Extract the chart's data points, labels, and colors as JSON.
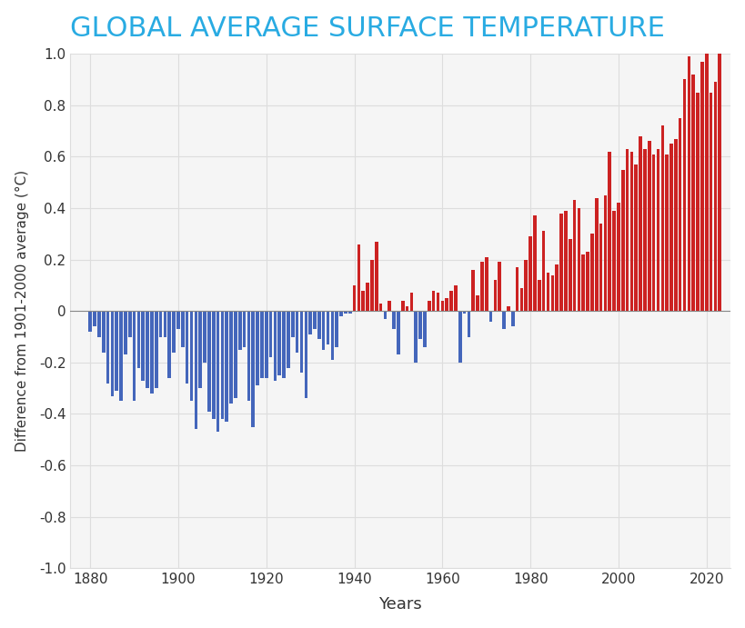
{
  "title": "GLOBAL AVERAGE SURFACE TEMPERATURE",
  "title_color": "#29ABE2",
  "xlabel": "Years",
  "ylabel": "Difference from 1901-2000 average (°C)",
  "background_color": "#ffffff",
  "plot_bg_color": "#f5f5f5",
  "grid_color": "#dddddd",
  "ylim": [
    -1.0,
    1.0
  ],
  "years": [
    1880,
    1881,
    1882,
    1883,
    1884,
    1885,
    1886,
    1887,
    1888,
    1889,
    1890,
    1891,
    1892,
    1893,
    1894,
    1895,
    1896,
    1897,
    1898,
    1899,
    1900,
    1901,
    1902,
    1903,
    1904,
    1905,
    1906,
    1907,
    1908,
    1909,
    1910,
    1911,
    1912,
    1913,
    1914,
    1915,
    1916,
    1917,
    1918,
    1919,
    1920,
    1921,
    1922,
    1923,
    1924,
    1925,
    1926,
    1927,
    1928,
    1929,
    1930,
    1931,
    1932,
    1933,
    1934,
    1935,
    1936,
    1937,
    1938,
    1939,
    1940,
    1941,
    1942,
    1943,
    1944,
    1945,
    1946,
    1947,
    1948,
    1949,
    1950,
    1951,
    1952,
    1953,
    1954,
    1955,
    1956,
    1957,
    1958,
    1959,
    1960,
    1961,
    1962,
    1963,
    1964,
    1965,
    1966,
    1967,
    1968,
    1969,
    1970,
    1971,
    1972,
    1973,
    1974,
    1975,
    1976,
    1977,
    1978,
    1979,
    1980,
    1981,
    1982,
    1983,
    1984,
    1985,
    1986,
    1987,
    1988,
    1989,
    1990,
    1991,
    1992,
    1993,
    1994,
    1995,
    1996,
    1997,
    1998,
    1999,
    2000,
    2001,
    2002,
    2003,
    2004,
    2005,
    2006,
    2007,
    2008,
    2009,
    2010,
    2011,
    2012,
    2013,
    2014,
    2015,
    2016,
    2017,
    2018,
    2019,
    2020,
    2021,
    2022,
    2023
  ],
  "anomalies": [
    -0.08,
    -0.06,
    -0.1,
    -0.16,
    -0.28,
    -0.33,
    -0.31,
    -0.35,
    -0.17,
    -0.1,
    -0.35,
    -0.22,
    -0.27,
    -0.3,
    -0.32,
    -0.3,
    -0.1,
    -0.1,
    -0.26,
    -0.16,
    -0.07,
    -0.14,
    -0.28,
    -0.35,
    -0.46,
    -0.3,
    -0.2,
    -0.39,
    -0.42,
    -0.47,
    -0.42,
    -0.43,
    -0.36,
    -0.34,
    -0.15,
    -0.14,
    -0.35,
    -0.45,
    -0.29,
    -0.26,
    -0.26,
    -0.18,
    -0.27,
    -0.25,
    -0.26,
    -0.22,
    -0.1,
    -0.16,
    -0.24,
    -0.34,
    -0.09,
    -0.07,
    -0.11,
    -0.15,
    -0.13,
    -0.19,
    -0.14,
    -0.02,
    -0.01,
    -0.01,
    0.1,
    0.26,
    0.08,
    0.11,
    0.2,
    0.27,
    0.03,
    -0.03,
    0.04,
    -0.07,
    -0.17,
    0.04,
    0.02,
    0.07,
    -0.2,
    -0.11,
    -0.14,
    0.04,
    0.08,
    0.07,
    0.04,
    0.05,
    0.08,
    0.1,
    -0.2,
    -0.01,
    -0.1,
    0.16,
    0.06,
    0.19,
    0.21,
    -0.04,
    0.12,
    0.19,
    -0.07,
    0.02,
    -0.06,
    0.17,
    0.09,
    0.2,
    0.29,
    0.37,
    0.12,
    0.31,
    0.15,
    0.14,
    0.18,
    0.38,
    0.39,
    0.28,
    0.43,
    0.4,
    0.22,
    0.23,
    0.3,
    0.44,
    0.34,
    0.45,
    0.62,
    0.39,
    0.42,
    0.55,
    0.63,
    0.62,
    0.57,
    0.68,
    0.63,
    0.66,
    0.61,
    0.63,
    0.72,
    0.61,
    0.65,
    0.67,
    0.75,
    0.9,
    0.99,
    0.92,
    0.85,
    0.97,
    1.02,
    0.85,
    0.89,
    1.17
  ],
  "color_positive": "#CC2222",
  "color_negative": "#4466BB",
  "xticks": [
    1880,
    1900,
    1920,
    1940,
    1960,
    1980,
    2000,
    2020
  ],
  "yticks": [
    -1.0,
    -0.8,
    -0.6,
    -0.4,
    -0.2,
    0.0,
    0.2,
    0.4,
    0.6,
    0.8,
    1.0
  ]
}
